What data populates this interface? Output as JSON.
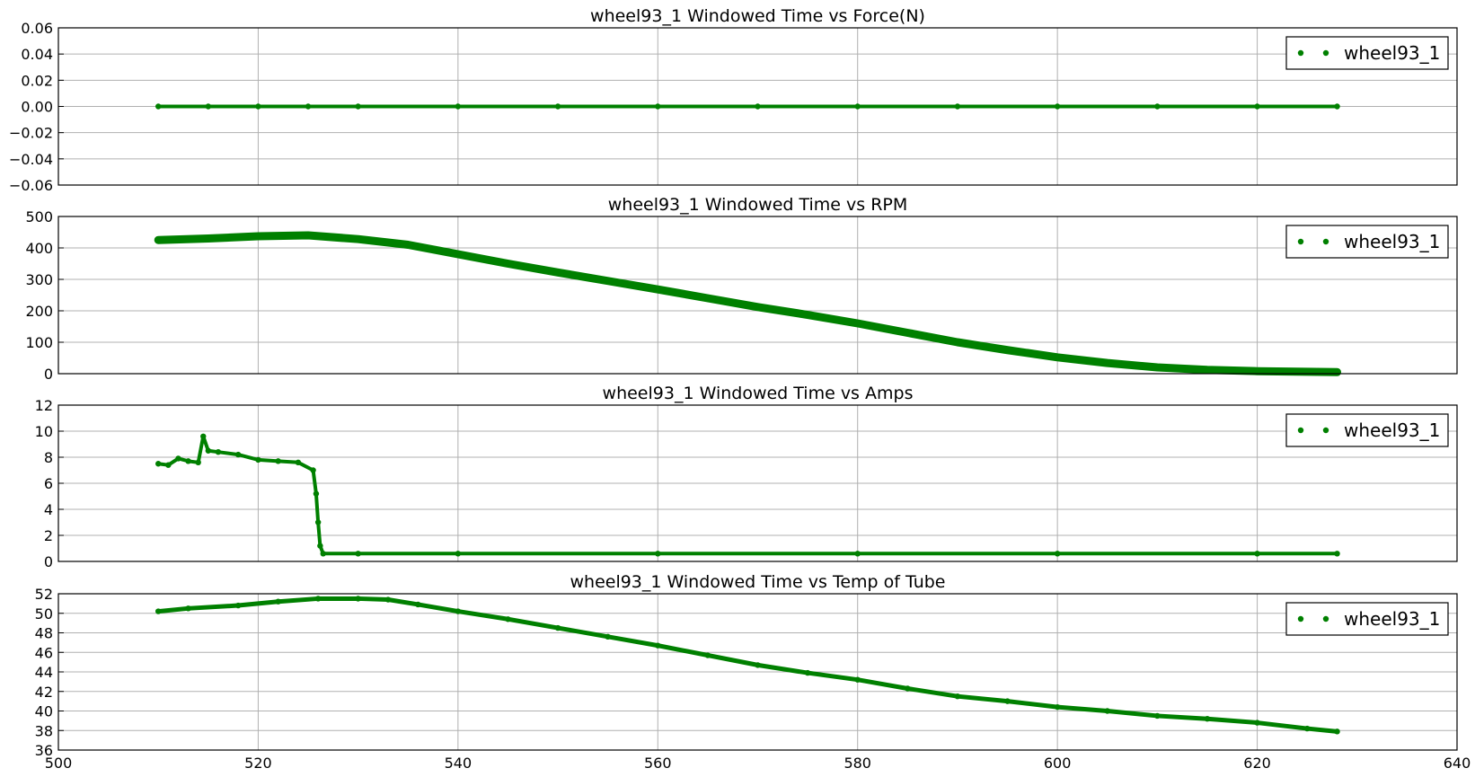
{
  "chart_data": [
    {
      "type": "scatter",
      "title": "wheel93_1 Windowed Time vs Force(N)",
      "xlabel": "",
      "ylabel": "",
      "xlim": [
        500,
        640
      ],
      "ylim": [
        -0.06,
        0.06
      ],
      "xticks": [],
      "yticks": [
        "0.06",
        "0.04",
        "0.02",
        "0.00",
        "−0.02",
        "−0.04",
        "−0.06"
      ],
      "ytick_values": [
        0.06,
        0.04,
        0.02,
        0.0,
        -0.02,
        -0.04,
        -0.06
      ],
      "grid": true,
      "legend_position": "top-right",
      "series": [
        {
          "name": "wheel93_1",
          "color": "#008000",
          "x": [
            510,
            515,
            520,
            525,
            530,
            540,
            550,
            560,
            570,
            580,
            590,
            600,
            610,
            620,
            628
          ],
          "y": [
            0,
            0,
            0,
            0,
            0,
            0,
            0,
            0,
            0,
            0,
            0,
            0,
            0,
            0,
            0
          ]
        }
      ]
    },
    {
      "type": "scatter",
      "title": "wheel93_1 Windowed Time vs RPM",
      "xlabel": "",
      "ylabel": "",
      "xlim": [
        500,
        640
      ],
      "ylim": [
        0,
        500
      ],
      "xticks": [],
      "yticks": [
        "500",
        "400",
        "300",
        "200",
        "100",
        "0"
      ],
      "ytick_values": [
        500,
        400,
        300,
        200,
        100,
        0
      ],
      "grid": true,
      "legend_position": "top-right",
      "series": [
        {
          "name": "wheel93_1",
          "color": "#008000",
          "x": [
            510,
            515,
            520,
            525,
            530,
            535,
            540,
            545,
            550,
            555,
            560,
            565,
            570,
            575,
            580,
            585,
            590,
            595,
            600,
            605,
            610,
            615,
            620,
            625,
            628
          ],
          "y": [
            425,
            430,
            437,
            440,
            428,
            410,
            380,
            350,
            322,
            295,
            268,
            240,
            212,
            187,
            160,
            130,
            100,
            75,
            52,
            34,
            20,
            12,
            8,
            6,
            5
          ]
        }
      ]
    },
    {
      "type": "scatter",
      "title": "wheel93_1 Windowed Time vs Amps",
      "xlabel": "",
      "ylabel": "",
      "xlim": [
        500,
        640
      ],
      "ylim": [
        0,
        12
      ],
      "xticks": [],
      "yticks": [
        "12",
        "10",
        "8",
        "6",
        "4",
        "2",
        "0"
      ],
      "ytick_values": [
        12,
        10,
        8,
        6,
        4,
        2,
        0
      ],
      "grid": true,
      "legend_position": "top-right",
      "series": [
        {
          "name": "wheel93_1",
          "color": "#008000",
          "x": [
            510,
            511,
            512,
            513,
            514,
            514.5,
            515,
            516,
            518,
            520,
            522,
            524,
            525.5,
            525.8,
            526,
            526.2,
            526.5,
            530,
            540,
            560,
            580,
            600,
            620,
            628
          ],
          "y": [
            7.5,
            7.4,
            7.9,
            7.7,
            7.6,
            9.6,
            8.5,
            8.4,
            8.2,
            7.8,
            7.7,
            7.6,
            7.0,
            5.2,
            3.0,
            1.2,
            0.6,
            0.6,
            0.6,
            0.6,
            0.6,
            0.6,
            0.6,
            0.6
          ]
        }
      ]
    },
    {
      "type": "scatter",
      "title": "wheel93_1 Windowed Time vs Temp of Tube",
      "xlabel": "",
      "ylabel": "",
      "xlim": [
        500,
        640
      ],
      "ylim": [
        36,
        52
      ],
      "xticks": [
        "500",
        "520",
        "540",
        "560",
        "580",
        "600",
        "620",
        "640"
      ],
      "xtick_values": [
        500,
        520,
        540,
        560,
        580,
        600,
        620,
        640
      ],
      "yticks": [
        "52",
        "50",
        "48",
        "46",
        "44",
        "42",
        "40",
        "38",
        "36"
      ],
      "ytick_values": [
        52,
        50,
        48,
        46,
        44,
        42,
        40,
        38,
        36
      ],
      "grid": true,
      "legend_position": "top-right",
      "series": [
        {
          "name": "wheel93_1",
          "color": "#008000",
          "x": [
            510,
            513,
            518,
            522,
            526,
            530,
            533,
            536,
            540,
            545,
            550,
            555,
            560,
            565,
            570,
            575,
            580,
            585,
            590,
            595,
            600,
            605,
            610,
            615,
            620,
            625,
            628
          ],
          "y": [
            50.2,
            50.5,
            50.8,
            51.2,
            51.5,
            51.5,
            51.4,
            50.9,
            50.2,
            49.4,
            48.5,
            47.6,
            46.7,
            45.7,
            44.7,
            43.9,
            43.2,
            42.3,
            41.5,
            41.0,
            40.4,
            40.0,
            39.5,
            39.2,
            38.8,
            38.2,
            37.9
          ]
        }
      ]
    }
  ]
}
